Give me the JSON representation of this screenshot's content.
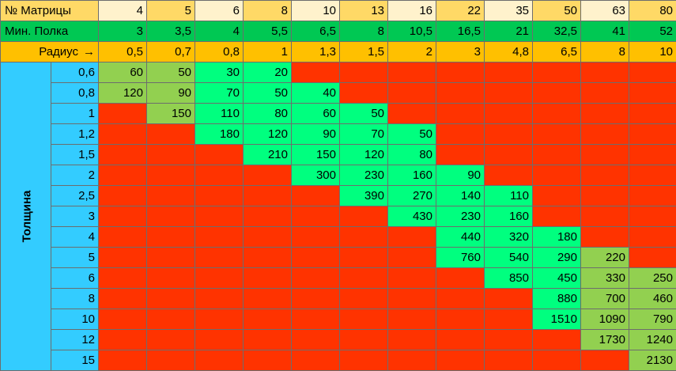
{
  "header": {
    "matrix_label": "№ Матрицы",
    "flange_label": "Мин. Полка",
    "radius_label": "Радиус",
    "radius_arrow": "→",
    "thickness_label": "Толщина"
  },
  "columns": {
    "matrix": [
      "4",
      "5",
      "6",
      "8",
      "10",
      "13",
      "16",
      "22",
      "35",
      "50",
      "63",
      "80"
    ],
    "min_flange": [
      "3",
      "3,5",
      "4",
      "5,5",
      "6,5",
      "8",
      "10,5",
      "16,5",
      "21",
      "32,5",
      "41",
      "52"
    ],
    "radius": [
      "0,5",
      "0,7",
      "0,8",
      "1",
      "1,3",
      "1,5",
      "2",
      "3",
      "4,8",
      "6,5",
      "8",
      "10"
    ]
  },
  "colors": {
    "red": "#ff3300",
    "green": "#00ff7f",
    "lime": "#92d050",
    "axis_blue": "#33ccff",
    "header_cream": "#fff2cc",
    "header_gold": "#ffd966",
    "min_flange_green": "#00c853",
    "radius_orange": "#ffc000"
  },
  "rows": [
    {
      "thickness": "0,6",
      "cells": [
        "60",
        "50",
        "30",
        "20",
        "",
        "",
        "",
        "",
        "",
        "",
        "",
        ""
      ],
      "colors": [
        "lime",
        "lime",
        "green",
        "green",
        "red",
        "red",
        "red",
        "red",
        "red",
        "red",
        "red",
        "red"
      ]
    },
    {
      "thickness": "0,8",
      "cells": [
        "120",
        "90",
        "70",
        "50",
        "40",
        "",
        "",
        "",
        "",
        "",
        "",
        ""
      ],
      "colors": [
        "lime",
        "lime",
        "green",
        "green",
        "green",
        "red",
        "red",
        "red",
        "red",
        "red",
        "red",
        "red"
      ]
    },
    {
      "thickness": "1",
      "cells": [
        "",
        "150",
        "110",
        "80",
        "60",
        "50",
        "",
        "",
        "",
        "",
        "",
        ""
      ],
      "colors": [
        "red",
        "lime",
        "green",
        "green",
        "green",
        "green",
        "red",
        "red",
        "red",
        "red",
        "red",
        "red"
      ]
    },
    {
      "thickness": "1,2",
      "cells": [
        "",
        "",
        "180",
        "120",
        "90",
        "70",
        "50",
        "",
        "",
        "",
        "",
        ""
      ],
      "colors": [
        "red",
        "red",
        "green",
        "green",
        "green",
        "green",
        "green",
        "red",
        "red",
        "red",
        "red",
        "red"
      ]
    },
    {
      "thickness": "1,5",
      "cells": [
        "",
        "",
        "",
        "210",
        "150",
        "120",
        "80",
        "",
        "",
        "",
        "",
        ""
      ],
      "colors": [
        "red",
        "red",
        "red",
        "green",
        "green",
        "green",
        "green",
        "red",
        "red",
        "red",
        "red",
        "red"
      ]
    },
    {
      "thickness": "2",
      "cells": [
        "",
        "",
        "",
        "",
        "300",
        "230",
        "160",
        "90",
        "",
        "",
        "",
        ""
      ],
      "colors": [
        "red",
        "red",
        "red",
        "red",
        "green",
        "green",
        "green",
        "green",
        "red",
        "red",
        "red",
        "red"
      ]
    },
    {
      "thickness": "2,5",
      "cells": [
        "",
        "",
        "",
        "",
        "",
        "390",
        "270",
        "140",
        "110",
        "",
        "",
        ""
      ],
      "colors": [
        "red",
        "red",
        "red",
        "red",
        "red",
        "green",
        "green",
        "green",
        "green",
        "red",
        "red",
        "red"
      ]
    },
    {
      "thickness": "3",
      "cells": [
        "",
        "",
        "",
        "",
        "",
        "",
        "430",
        "230",
        "160",
        "",
        "",
        ""
      ],
      "colors": [
        "red",
        "red",
        "red",
        "red",
        "red",
        "red",
        "green",
        "green",
        "green",
        "red",
        "red",
        "red"
      ]
    },
    {
      "thickness": "4",
      "cells": [
        "",
        "",
        "",
        "",
        "",
        "",
        "",
        "440",
        "320",
        "180",
        "",
        ""
      ],
      "colors": [
        "red",
        "red",
        "red",
        "red",
        "red",
        "red",
        "red",
        "green",
        "green",
        "green",
        "red",
        "red"
      ]
    },
    {
      "thickness": "5",
      "cells": [
        "",
        "",
        "",
        "",
        "",
        "",
        "",
        "760",
        "540",
        "290",
        "220",
        ""
      ],
      "colors": [
        "red",
        "red",
        "red",
        "red",
        "red",
        "red",
        "red",
        "green",
        "green",
        "green",
        "lime",
        "red"
      ]
    },
    {
      "thickness": "6",
      "cells": [
        "",
        "",
        "",
        "",
        "",
        "",
        "",
        "",
        "850",
        "450",
        "330",
        "250"
      ],
      "colors": [
        "red",
        "red",
        "red",
        "red",
        "red",
        "red",
        "red",
        "red",
        "green",
        "green",
        "lime",
        "lime"
      ]
    },
    {
      "thickness": "8",
      "cells": [
        "",
        "",
        "",
        "",
        "",
        "",
        "",
        "",
        "",
        "880",
        "700",
        "460"
      ],
      "colors": [
        "red",
        "red",
        "red",
        "red",
        "red",
        "red",
        "red",
        "red",
        "red",
        "green",
        "lime",
        "lime"
      ]
    },
    {
      "thickness": "10",
      "cells": [
        "",
        "",
        "",
        "",
        "",
        "",
        "",
        "",
        "",
        "1510",
        "1090",
        "790"
      ],
      "colors": [
        "red",
        "red",
        "red",
        "red",
        "red",
        "red",
        "red",
        "red",
        "red",
        "green",
        "lime",
        "lime"
      ]
    },
    {
      "thickness": "12",
      "cells": [
        "",
        "",
        "",
        "",
        "",
        "",
        "",
        "",
        "",
        "",
        "1730",
        "1240"
      ],
      "colors": [
        "red",
        "red",
        "red",
        "red",
        "red",
        "red",
        "red",
        "red",
        "red",
        "red",
        "lime",
        "lime"
      ]
    },
    {
      "thickness": "15",
      "cells": [
        "",
        "",
        "",
        "",
        "",
        "",
        "",
        "",
        "",
        "",
        "",
        "2130"
      ],
      "colors": [
        "red",
        "red",
        "red",
        "red",
        "red",
        "red",
        "red",
        "red",
        "red",
        "red",
        "red",
        "lime"
      ]
    }
  ]
}
